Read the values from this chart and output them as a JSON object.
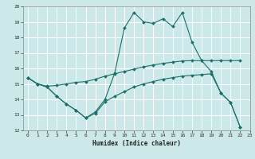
{
  "xlabel": "Humidex (Indice chaleur)",
  "xlim": [
    -0.5,
    23
  ],
  "ylim": [
    12,
    20
  ],
  "xticks": [
    0,
    1,
    2,
    3,
    4,
    5,
    6,
    7,
    8,
    9,
    10,
    11,
    12,
    13,
    14,
    15,
    16,
    17,
    18,
    19,
    20,
    21,
    22,
    23
  ],
  "yticks": [
    12,
    13,
    14,
    15,
    16,
    17,
    18,
    19,
    20
  ],
  "bg_color": "#cde8e8",
  "line_color": "#1a7068",
  "grid_color": "#ffffff",
  "line1_x": [
    0,
    1,
    2,
    3,
    4,
    5,
    6,
    7,
    8,
    9,
    10,
    11,
    12,
    13,
    14,
    15,
    16,
    17,
    18,
    19,
    20,
    21,
    22
  ],
  "line1_y": [
    15.4,
    15.0,
    14.8,
    14.2,
    13.7,
    13.3,
    12.8,
    13.2,
    14.0,
    15.7,
    18.6,
    19.6,
    19.0,
    18.9,
    19.2,
    18.7,
    19.6,
    17.7,
    16.5,
    15.8,
    14.4,
    13.8,
    12.2
  ],
  "line2_x": [
    0,
    1,
    2,
    3,
    4,
    5,
    6,
    7,
    8,
    9,
    10,
    11,
    12,
    13,
    14,
    15,
    16,
    17,
    18,
    19,
    20,
    21,
    22
  ],
  "line2_y": [
    15.4,
    15.0,
    14.85,
    14.9,
    15.0,
    15.1,
    15.15,
    15.3,
    15.5,
    15.65,
    15.8,
    15.95,
    16.1,
    16.22,
    16.32,
    16.4,
    16.48,
    16.5,
    16.5,
    16.5,
    16.5,
    16.5,
    16.5
  ],
  "line3_x": [
    0,
    1,
    2,
    3,
    4,
    5,
    6,
    7,
    8,
    9,
    10,
    11,
    12,
    13,
    14,
    15,
    16,
    17,
    18,
    19,
    20,
    21,
    22
  ],
  "line3_y": [
    15.4,
    15.0,
    14.8,
    14.2,
    13.7,
    13.3,
    12.8,
    13.1,
    13.85,
    14.2,
    14.5,
    14.8,
    15.0,
    15.15,
    15.3,
    15.4,
    15.5,
    15.55,
    15.6,
    15.65,
    14.4,
    13.8,
    12.2
  ]
}
